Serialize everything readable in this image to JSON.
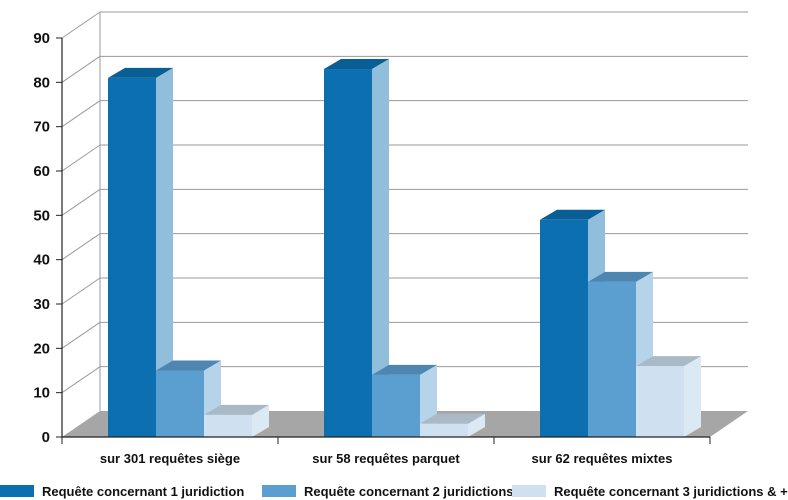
{
  "chart_data": {
    "type": "bar",
    "title": "",
    "xlabel": "",
    "ylabel": "",
    "ylim": [
      0,
      90
    ],
    "yticks": [
      0,
      10,
      20,
      30,
      40,
      50,
      60,
      70,
      80,
      90
    ],
    "grid": true,
    "legend_position": "bottom",
    "categories": [
      "sur 301 requêtes siège",
      "sur 58 requêtes parquet",
      "sur 62 requêtes mixtes"
    ],
    "series": [
      {
        "name": "Requête concernant 1 juridiction",
        "values": [
          81,
          83,
          49
        ],
        "color": "#0b6fb0"
      },
      {
        "name": "Requête concernant 2 juridictions",
        "values": [
          15,
          14,
          35
        ],
        "color": "#5a9fd0"
      },
      {
        "name": "Requête concernant 3 juridictions & +",
        "values": [
          5,
          3,
          16
        ],
        "color": "#cfe1f1"
      }
    ]
  },
  "colors": {
    "floor": "#a6a6a6",
    "grid": "#9a9a9a",
    "axis": "#222222"
  }
}
